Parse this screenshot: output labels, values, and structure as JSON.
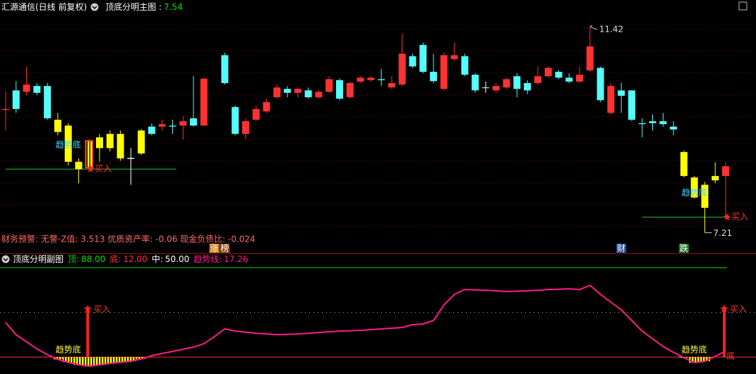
{
  "chart_data": [
    {
      "type": "candlestick",
      "title": "汇源通信(日线 前复权)",
      "indicator": "顶底分明主图 :",
      "indicator_value": 7.54,
      "ylim": [
        7.0,
        11.68
      ],
      "open": [
        9.72,
        10.12,
        10.09,
        10.21,
        10.21,
        9.52,
        9.4,
        8.66,
        8.54,
        8.94,
        8.94,
        8.73,
        8.74,
        8.83,
        9.38,
        9.38,
        9.4,
        9.4,
        9.55,
        9.4,
        null,
        10.84,
        9.78,
        9.23,
        9.52,
        9.69,
        9.98,
        10.15,
        10.07,
        10.12,
        9.98,
        10.09,
        10.33,
        9.98,
        10.3,
        10.33,
        10.35,
        10.18,
        10.24,
        10.82,
        11.05,
        10.5,
        10.15,
        10.76,
        10.82,
        10.44,
        10.18,
        10.12,
        10.18,
        10.41,
        10.27,
        10.27,
        10.41,
        10.5,
        10.38,
        10.3,
        10.53,
        10.58,
        9.66,
        10.12,
        10.12,
        9.45,
        9.49,
        9.49,
        9.38,
        8.86,
        8.34,
        8.19,
        8.28,
        8.37
      ],
      "close": [
        9.74,
        9.74,
        10.24,
        10.07,
        9.55,
        9.27,
        8.66,
        8.51,
        9.09,
        9.16,
        9.23,
        9.23,
        8.72,
        9.3,
        9.23,
        9.43,
        9.38,
        9.49,
        9.4,
        10.36,
        null,
        10.27,
        9.23,
        9.49,
        9.74,
        9.88,
        10.18,
        10.07,
        10.15,
        9.98,
        10.09,
        10.35,
        9.95,
        10.27,
        10.38,
        10.38,
        10.33,
        10.27,
        10.87,
        10.61,
        10.5,
        10.31,
        10.84,
        10.84,
        10.44,
        10.12,
        10.18,
        10.21,
        10.35,
        10.15,
        10.12,
        10.41,
        10.58,
        10.38,
        10.3,
        10.44,
        11.02,
        9.92,
        10.21,
        10.01,
        9.52,
        9.43,
        9.45,
        9.43,
        9.32,
        8.37,
        7.93,
        7.72,
        8.37,
        8.57
      ],
      "high": [
        10.1,
        10.31,
        10.6,
        10.27,
        10.27,
        9.66,
        9.45,
        8.73,
        9.12,
        9.23,
        9.3,
        9.3,
        8.94,
        9.33,
        9.45,
        9.52,
        9.52,
        9.59,
        10.41,
        10.38,
        null,
        10.89,
        9.81,
        9.55,
        9.81,
        9.95,
        10.24,
        10.21,
        10.18,
        10.18,
        10.12,
        10.41,
        10.36,
        10.3,
        10.41,
        10.41,
        10.56,
        10.41,
        11.28,
        10.87,
        11.1,
        10.87,
        10.9,
        11.1,
        10.87,
        10.47,
        10.3,
        10.27,
        10.38,
        10.47,
        10.33,
        10.61,
        10.61,
        10.53,
        10.47,
        10.61,
        11.42,
        10.61,
        10.27,
        10.27,
        10.12,
        9.55,
        9.63,
        9.66,
        9.49,
        8.89,
        8.37,
        8.25,
        8.65,
        8.65
      ],
      "low": [
        9.3,
        9.66,
        10.02,
        10.02,
        9.52,
        9.2,
        8.58,
        8.22,
        8.48,
        8.66,
        8.87,
        8.68,
        8.19,
        8.8,
        9.2,
        9.3,
        9.23,
        9.12,
        9.38,
        9.4,
        null,
        10.24,
        9.2,
        9.12,
        9.49,
        9.66,
        9.95,
        9.98,
        9.98,
        9.95,
        9.95,
        10.07,
        9.92,
        9.95,
        10.27,
        10.3,
        10.21,
        10.15,
        10.21,
        10.58,
        10.47,
        10.27,
        10.12,
        10.73,
        10.41,
        10.07,
        10.07,
        10.07,
        10.15,
        9.98,
        10.04,
        10.24,
        10.38,
        10.35,
        10.27,
        10.27,
        10.5,
        9.88,
        9.63,
        9.66,
        9.49,
        9.16,
        9.3,
        9.38,
        9.2,
        8.34,
        7.91,
        7.21,
        8.22,
        8.34
      ],
      "colors": [
        "#ff3232",
        "#54fcfc",
        "#ff3232",
        "#54fcfc",
        "#54fcfc",
        "#ffff00",
        "#ffff00",
        "#ffff00",
        "#ff3232",
        "#ffff00",
        "#ffff00",
        "#ffff00",
        "#ffffff",
        "#ffff00",
        "#54fcfc",
        "#ff3232",
        "#54fcfc",
        "#ff3232",
        "#54fcfc",
        "#ff3232",
        null,
        "#54fcfc",
        "#54fcfc",
        "#ff3232",
        "#ff3232",
        "#ff3232",
        "#ff3232",
        "#54fcfc",
        "#ff3232",
        "#54fcfc",
        "#ff3232",
        "#ff3232",
        "#54fcfc",
        "#ff3232",
        "#ff3232",
        "#ff3232",
        "#54fcfc",
        "#ff3232",
        "#ff3232",
        "#54fcfc",
        "#54fcfc",
        "#54fcfc",
        "#ff3232",
        "#ff3232",
        "#54fcfc",
        "#54fcfc",
        "#ffffff",
        "#ff3232",
        "#ff3232",
        "#54fcfc",
        "#54fcfc",
        "#ff3232",
        "#ff3232",
        "#54fcfc",
        "#54fcfc",
        "#ff3232",
        "#ff3232",
        "#54fcfc",
        "#ff3232",
        "#54fcfc",
        "#54fcfc",
        "#54fcfc",
        "#54fcfc",
        "#54fcfc",
        "#54fcfc",
        "#ffff00",
        "#ffff00",
        "#ffff00",
        "#ffff00",
        "#ff3232"
      ],
      "high_index": 56,
      "low_index": 67,
      "trend_bottoms": [
        {
          "start": 0,
          "end": 16,
          "level": 8.51,
          "label": "趋势底",
          "label_index": 6,
          "buy_index": 8,
          "buy_label": "买入"
        },
        {
          "start": 61,
          "end": 69,
          "level": 7.53,
          "label": "趋势底",
          "label_index": 66,
          "buy_index": 69,
          "buy_label": "买入"
        }
      ],
      "note": "财务预警: 无警-Z值: 3.513 优质资产率: -0.06 现金负债比: -0.024",
      "events": [
        {
          "index": 20,
          "label": "涨",
          "color": "#d07a10"
        },
        {
          "index": 21,
          "label": "榜",
          "color": "#8a4a1a"
        },
        {
          "index": 59,
          "label": "财",
          "color": "#1e4fa0"
        },
        {
          "index": 65,
          "label": "跌",
          "color": "#1f7a2a"
        }
      ]
    },
    {
      "type": "line",
      "title": "顶底分明副图",
      "ylim": [
        0,
        100
      ],
      "levels": [
        {
          "name": "顶:",
          "value": 88,
          "label": "88.00",
          "color": "#00e000"
        },
        {
          "name": "底:",
          "value": 12,
          "label": "12.00",
          "color": "#ff3232"
        },
        {
          "name": "中:",
          "value": 50,
          "label": "50.00",
          "color": "#ffffff"
        }
      ],
      "series": [
        {
          "name": "趋势线:",
          "color": "#ff1a8c",
          "values": [
            41.3,
            31,
            25,
            19,
            14,
            10,
            7.5,
            5.4,
            4.2,
            5.2,
            6.6,
            7.5,
            8.4,
            10.5,
            13.2,
            15,
            16.8,
            18.6,
            20.4,
            23.4,
            29.4,
            35.9,
            34.1,
            33.2,
            32.3,
            31.7,
            31.1,
            31.4,
            31.7,
            32.3,
            32.9,
            33.5,
            34.1,
            34.4,
            34.7,
            35.3,
            35.9,
            36.5,
            37.1,
            39.5,
            40.1,
            43.1,
            56.3,
            65.3,
            69.4,
            69.1,
            68.8,
            68.3,
            67.7,
            68.0,
            68.3,
            68.8,
            69.4,
            69.7,
            70.0,
            69.4,
            73.0,
            65.3,
            58.7,
            52.1,
            43.1,
            34.1,
            27.5,
            21.0,
            16.0,
            11.4,
            7.2,
            8.4,
            12.6,
            17.26
          ]
        }
      ],
      "signals": [
        {
          "index": 8,
          "label": "买入"
        },
        {
          "index": 69,
          "label": "买入"
        }
      ],
      "trend_labels": [
        {
          "index": 6,
          "label": "趋势底"
        },
        {
          "index": 66,
          "label": "趋势底"
        }
      ],
      "bottom_tag": {
        "index": 69,
        "label": "底"
      }
    }
  ]
}
